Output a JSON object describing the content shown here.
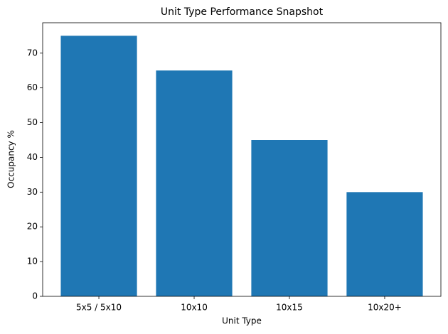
{
  "chart_data": {
    "type": "bar",
    "title": "Unit Type Performance Snapshot",
    "x_label": "Unit Type",
    "y_label": "Occupancy %",
    "categories": [
      "5x5 / 5x10",
      "10x10",
      "10x15",
      "10x20+"
    ],
    "values": [
      75,
      65,
      45,
      30
    ],
    "color": "#1f77b4",
    "ylim": [
      0,
      78.75
    ],
    "yticks": [
      0,
      10,
      20,
      30,
      40,
      50,
      60,
      70
    ],
    "grid": false
  }
}
